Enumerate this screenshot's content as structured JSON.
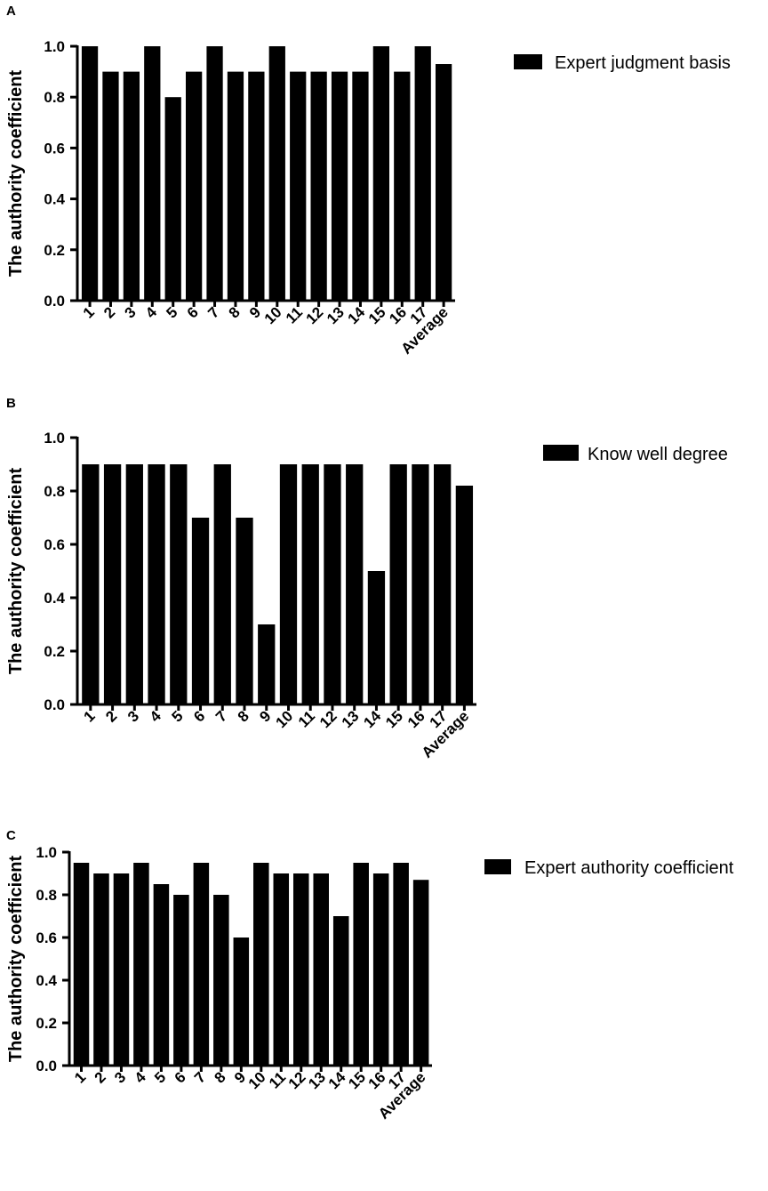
{
  "chart_data": [
    {
      "panel_label": "A",
      "type": "bar",
      "categories": [
        "1",
        "2",
        "3",
        "4",
        "5",
        "6",
        "7",
        "8",
        "9",
        "10",
        "11",
        "12",
        "13",
        "14",
        "15",
        "16",
        "17",
        "Average"
      ],
      "series": [
        {
          "name": "Expert judgment basis",
          "values": [
            1.0,
            0.9,
            0.9,
            1.0,
            0.8,
            0.9,
            1.0,
            0.9,
            0.9,
            1.0,
            0.9,
            0.9,
            0.9,
            0.9,
            1.0,
            0.9,
            1.0,
            0.93
          ]
        }
      ],
      "ylabel": "The authority coefficient",
      "xlabel": "",
      "ylim": [
        0,
        1.0
      ],
      "yticks": [
        "0.0",
        "0.2",
        "0.4",
        "0.6",
        "0.8",
        "1.0"
      ],
      "legend_position": "top-right",
      "bar_color": "#000000"
    },
    {
      "panel_label": "B",
      "type": "bar",
      "categories": [
        "1",
        "2",
        "3",
        "4",
        "5",
        "6",
        "7",
        "8",
        "9",
        "10",
        "11",
        "12",
        "13",
        "14",
        "15",
        "16",
        "17",
        "Average"
      ],
      "series": [
        {
          "name": "Know well degree",
          "values": [
            0.9,
            0.9,
            0.9,
            0.9,
            0.9,
            0.7,
            0.9,
            0.7,
            0.3,
            0.9,
            0.9,
            0.9,
            0.9,
            0.5,
            0.9,
            0.9,
            0.9,
            0.82
          ]
        }
      ],
      "ylabel": "The authority coefficient",
      "xlabel": "",
      "ylim": [
        0,
        1.0
      ],
      "yticks": [
        "0.0",
        "0.2",
        "0.4",
        "0.6",
        "0.8",
        "1.0"
      ],
      "legend_position": "top-right",
      "bar_color": "#000000"
    },
    {
      "panel_label": "C",
      "type": "bar",
      "categories": [
        "1",
        "2",
        "3",
        "4",
        "5",
        "6",
        "7",
        "8",
        "9",
        "10",
        "11",
        "12",
        "13",
        "14",
        "15",
        "16",
        "17",
        "Average"
      ],
      "series": [
        {
          "name": "Expert authority coefficient",
          "values": [
            0.95,
            0.9,
            0.9,
            0.95,
            0.85,
            0.8,
            0.95,
            0.8,
            0.6,
            0.95,
            0.9,
            0.9,
            0.9,
            0.7,
            0.95,
            0.9,
            0.95,
            0.87
          ]
        }
      ],
      "ylabel": "The authority coefficient",
      "xlabel": "",
      "ylim": [
        0,
        1.0
      ],
      "yticks": [
        "0.0",
        "0.2",
        "0.4",
        "0.6",
        "0.8",
        "1.0"
      ],
      "legend_position": "top-right",
      "bar_color": "#000000"
    }
  ]
}
